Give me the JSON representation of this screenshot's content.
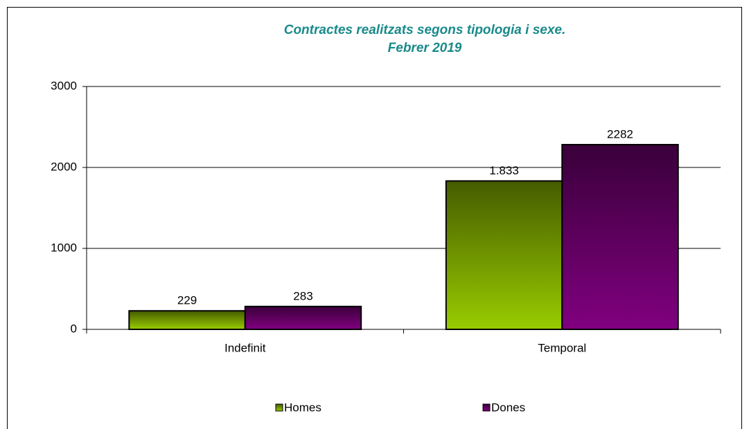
{
  "chart_data": {
    "type": "bar",
    "title": [
      "Contractes realitzats segons tipologia i sexe.",
      "Febrer 2019"
    ],
    "categories": [
      "Indefinit",
      "Temporal"
    ],
    "series": [
      {
        "name": "Homes",
        "color": "#99cc00",
        "values": [
          229,
          1833
        ],
        "value_labels": [
          "229",
          "1.833"
        ]
      },
      {
        "name": "Dones",
        "color": "#800080",
        "values": [
          283,
          2282
        ]
      }
    ],
    "ylim": [
      0,
      3000
    ],
    "yticks": [
      0,
      1000,
      2000,
      3000
    ],
    "grid": true,
    "legend": "bottom"
  }
}
